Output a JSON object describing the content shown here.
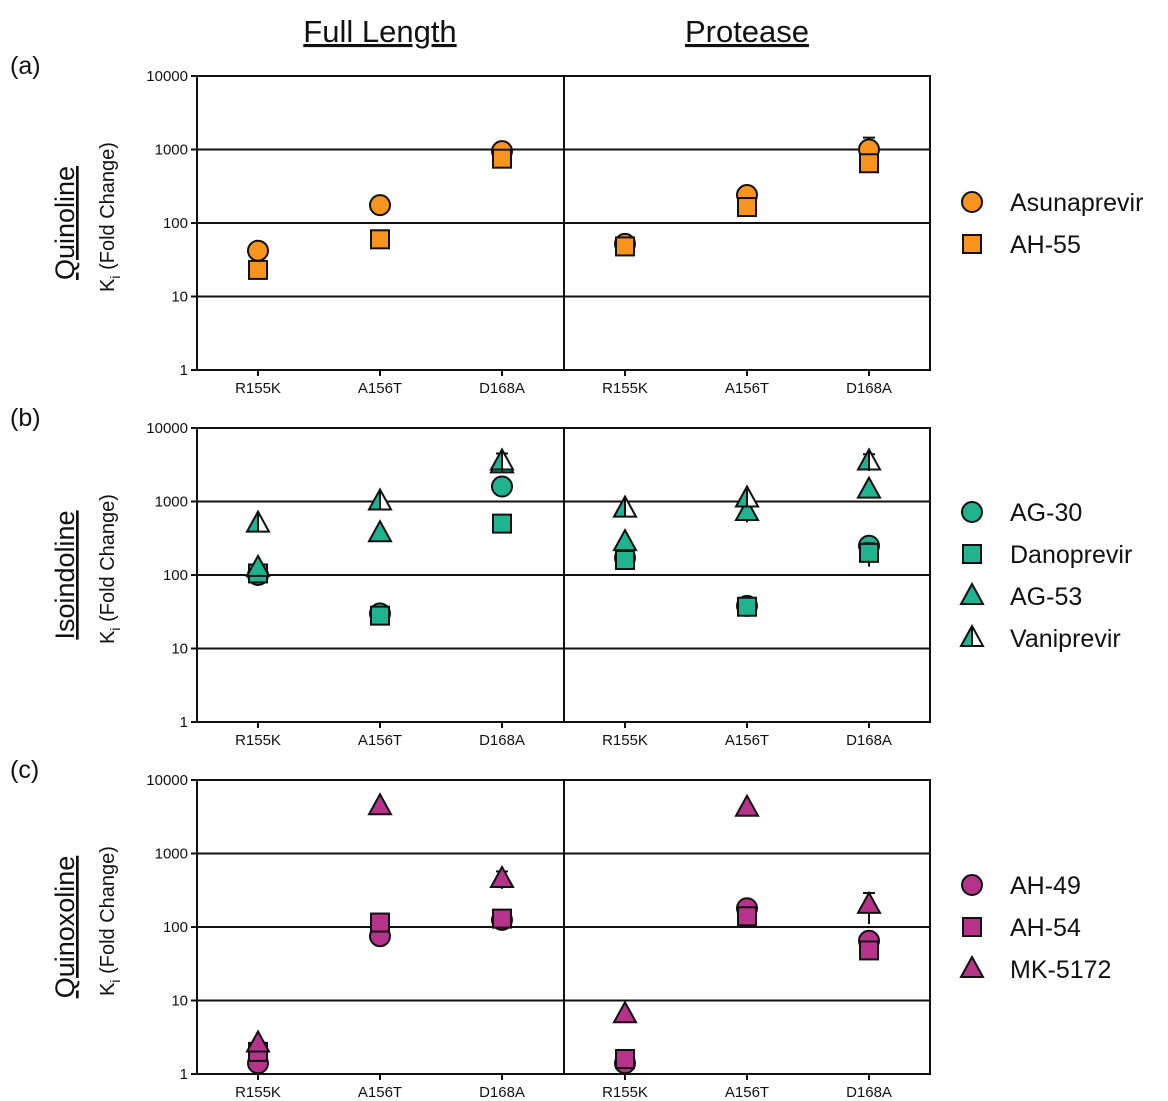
{
  "column_titles": [
    "Full Length",
    "Protease"
  ],
  "y_axis_label_main": "K",
  "y_axis_label_sub": "i",
  "y_axis_label_rest": " (Fold Change)",
  "chart_data": [
    {
      "type": "scatter",
      "panel_label": "(a)",
      "row_title": "Quinoline",
      "yscale": "log",
      "ylim": [
        1,
        10000
      ],
      "yticks": [
        "1",
        "10",
        "100",
        "1000",
        "10000"
      ],
      "categories": [
        "R155K",
        "A156T",
        "D168A"
      ],
      "columns": [
        "Full Length",
        "Protease"
      ],
      "grid": "horizontal lines at 10, 100, 1000",
      "legend_position": "right",
      "series": [
        {
          "name": "Asunaprevir",
          "marker": "circle",
          "color": "#f7941d",
          "full_length": [
            42,
            175,
            950
          ],
          "protease": [
            52,
            240,
            1000
          ],
          "full_length_err": [
            0,
            0,
            250
          ],
          "protease_err": [
            0,
            40,
            450
          ]
        },
        {
          "name": "AH-55",
          "marker": "square",
          "color": "#f7941d",
          "full_length": [
            23,
            60,
            750
          ],
          "protease": [
            48,
            165,
            650
          ],
          "full_length_err": [
            5,
            12,
            100
          ],
          "protease_err": [
            5,
            20,
            80
          ]
        }
      ]
    },
    {
      "type": "scatter",
      "panel_label": "(b)",
      "row_title": "Isoindoline",
      "yscale": "log",
      "ylim": [
        1,
        10000
      ],
      "yticks": [
        "1",
        "10",
        "100",
        "1000",
        "10000"
      ],
      "categories": [
        "R155K",
        "A156T",
        "D168A"
      ],
      "columns": [
        "Full Length",
        "Protease"
      ],
      "grid": "horizontal lines at 10, 100, 1000",
      "legend_position": "right",
      "series": [
        {
          "name": "AG-30",
          "marker": "circle",
          "color": "#1fb38e",
          "full_length": [
            100,
            30,
            1600
          ],
          "protease": [
            170,
            38,
            250
          ],
          "full_length_err": [
            0,
            0,
            0
          ],
          "protease_err": [
            0,
            0,
            0
          ]
        },
        {
          "name": "Danoprevir",
          "marker": "square",
          "color": "#1fb38e",
          "full_length": [
            105,
            28,
            500
          ],
          "protease": [
            160,
            37,
            200
          ],
          "full_length_err": [
            0,
            0,
            0
          ],
          "protease_err": [
            0,
            0,
            70
          ]
        },
        {
          "name": "AG-53",
          "marker": "triangle",
          "color": "#1fb38e",
          "full_length": [
            125,
            370,
            3200
          ],
          "protease": [
            280,
            720,
            1450
          ],
          "full_length_err": [
            0,
            0,
            0
          ],
          "protease_err": [
            0,
            200,
            0
          ]
        },
        {
          "name": "Vaniprevir",
          "marker": "half-triangle",
          "color": "#1fb38e",
          "full_length": [
            500,
            1000,
            3500
          ],
          "protease": [
            800,
            1100,
            3500
          ],
          "full_length_err": [
            0,
            0,
            1000
          ],
          "protease_err": [
            0,
            0,
            900
          ]
        }
      ]
    },
    {
      "type": "scatter",
      "panel_label": "(c)",
      "row_title": "Quinoxoline",
      "yscale": "log",
      "ylim": [
        1,
        10000
      ],
      "yticks": [
        "1",
        "10",
        "100",
        "1000",
        "10000"
      ],
      "categories": [
        "R155K",
        "A156T",
        "D168A"
      ],
      "columns": [
        "Full Length",
        "Protease"
      ],
      "grid": "horizontal lines at 10, 100, 1000",
      "legend_position": "right",
      "series": [
        {
          "name": "AH-49",
          "marker": "circle",
          "color": "#b5338a",
          "full_length": [
            1.4,
            75,
            125
          ],
          "protease": [
            1.4,
            180,
            65
          ],
          "full_length_err": [
            0,
            0,
            0
          ],
          "protease_err": [
            0,
            0,
            0
          ]
        },
        {
          "name": "AH-54",
          "marker": "square",
          "color": "#b5338a",
          "full_length": [
            2.0,
            115,
            130
          ],
          "protease": [
            1.6,
            140,
            48
          ],
          "full_length_err": [
            0,
            0,
            0
          ],
          "protease_err": [
            0,
            0,
            0
          ]
        },
        {
          "name": "MK-5172",
          "marker": "triangle",
          "color": "#b5338a",
          "full_length": [
            2.6,
            4400,
            450
          ],
          "protease": [
            6.5,
            4200,
            200
          ],
          "full_length_err": [
            0,
            0,
            120
          ],
          "protease_err": [
            0,
            0,
            90
          ]
        }
      ]
    }
  ]
}
